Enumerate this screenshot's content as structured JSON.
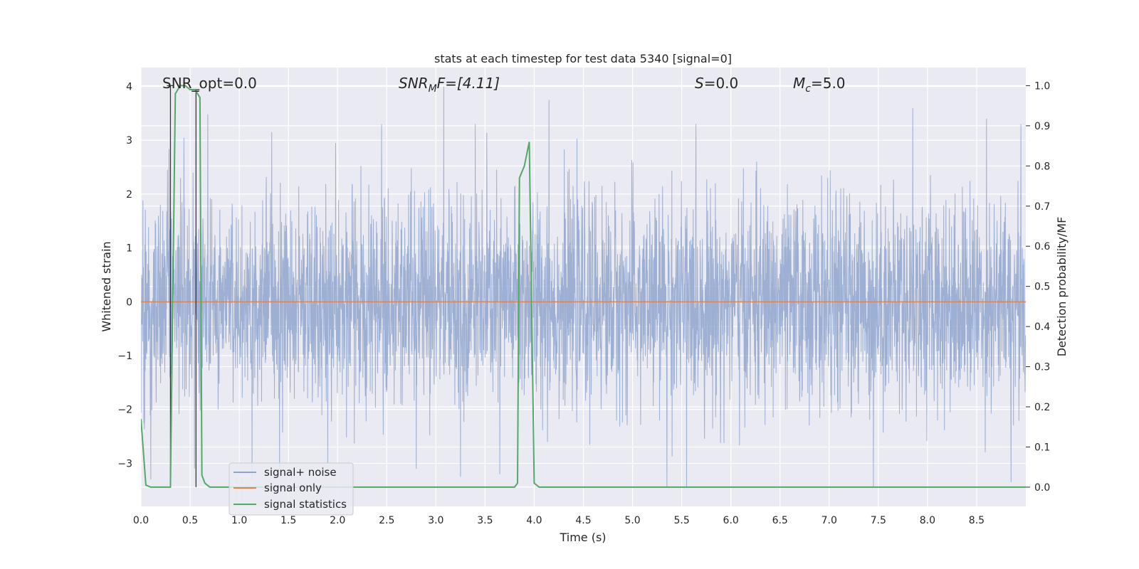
{
  "chart_data": {
    "type": "line",
    "title": "stats at each timestep for test data 5340 [signal=0]",
    "xlabel": "Time (s)",
    "ylabel": "Whitened strain",
    "y2label": "Detection probability/MF",
    "xlim": [
      0,
      9.0
    ],
    "ylim": [
      -3.8,
      4.35
    ],
    "y2lim": [
      -0.048,
      1.045
    ],
    "xticks": [
      0.0,
      0.5,
      1.0,
      1.5,
      2.0,
      2.5,
      3.0,
      3.5,
      4.0,
      4.5,
      5.0,
      5.5,
      6.0,
      6.5,
      7.0,
      7.5,
      8.0,
      8.5
    ],
    "yticks": [
      4,
      3,
      2,
      1,
      0,
      -1,
      -2,
      -3
    ],
    "ytick_labels": [
      "4",
      "3",
      "2",
      "1",
      "0",
      "−1",
      "−2",
      "−3"
    ],
    "y2ticks": [
      1.0,
      0.9,
      0.8,
      0.7,
      0.6,
      0.5,
      0.4,
      0.3,
      0.2,
      0.1,
      0.0
    ],
    "grid": true,
    "legend_position": "lower-left",
    "annotations": {
      "snr_opt": "SNR_opt=0.0",
      "snr_mf_symbol": "SNR",
      "snr_mf_sub": "M",
      "snr_mf_tail": "F=[4.11]",
      "s_symbol": "S",
      "s_tail": "=0.0",
      "mc_symbol": "M",
      "mc_sub": "c",
      "mc_tail": "=5.0"
    },
    "noise_sample_spacing": 0.0025,
    "noise_spikes": [
      {
        "x": 0.27,
        "y": 2.45
      },
      {
        "x": 0.53,
        "y": 2.4
      },
      {
        "x": 0.68,
        "y": 3.48
      },
      {
        "x": 1.33,
        "y": 3.15
      },
      {
        "x": 1.98,
        "y": 2.95
      },
      {
        "x": 3.08,
        "y": 4.0
      },
      {
        "x": 3.4,
        "y": 3.3
      },
      {
        "x": 4.15,
        "y": 3.75
      },
      {
        "x": 7.85,
        "y": 3.6
      },
      {
        "x": 8.6,
        "y": 3.4
      },
      {
        "x": 8.95,
        "y": 3.3
      },
      {
        "x": 1.9,
        "y": -3.0
      },
      {
        "x": 2.8,
        "y": -3.1
      },
      {
        "x": 3.25,
        "y": -3.25
      },
      {
        "x": 3.65,
        "y": -3.2
      },
      {
        "x": 0.1,
        "y": -3.3
      },
      {
        "x": 5.35,
        "y": -3.45
      },
      {
        "x": 5.55,
        "y": -3.45
      },
      {
        "x": 7.45,
        "y": -3.45
      },
      {
        "x": 8.85,
        "y": -3.35
      }
    ],
    "series": [
      {
        "name": "signal+ noise",
        "color": "#8fa4cd",
        "axis": "left",
        "kind": "noise-band"
      },
      {
        "name": "signal only",
        "color": "#dd8452",
        "axis": "left",
        "x": [
          0.0,
          9.0
        ],
        "y": [
          0.0,
          0.0
        ]
      },
      {
        "name": "signal statistics",
        "color": "#55a868",
        "axis": "right",
        "x": [
          0.0,
          0.05,
          0.1,
          0.15,
          0.2,
          0.25,
          0.3,
          0.35,
          0.4,
          0.45,
          0.5,
          0.55,
          0.6,
          0.62,
          0.65,
          0.7,
          0.75,
          0.8,
          3.8,
          3.83,
          3.85,
          3.9,
          3.95,
          4.0,
          4.05,
          4.1,
          4.2,
          9.0
        ],
        "y": [
          0.17,
          0.005,
          0.0,
          0.0,
          0.0,
          0.0,
          0.0,
          0.98,
          1.0,
          1.0,
          0.99,
          0.99,
          0.97,
          0.03,
          0.01,
          0.0,
          0.0,
          0.0,
          0.0,
          0.01,
          0.77,
          0.8,
          0.86,
          0.01,
          0.0,
          0.0,
          0.0,
          0.0
        ]
      }
    ],
    "vertical_markers": [
      {
        "x": 0.3,
        "y_top": 1.0,
        "y_bottom": 0.0
      },
      {
        "x": 0.56,
        "y_top": 0.99,
        "y_bottom": 0.0
      }
    ]
  }
}
